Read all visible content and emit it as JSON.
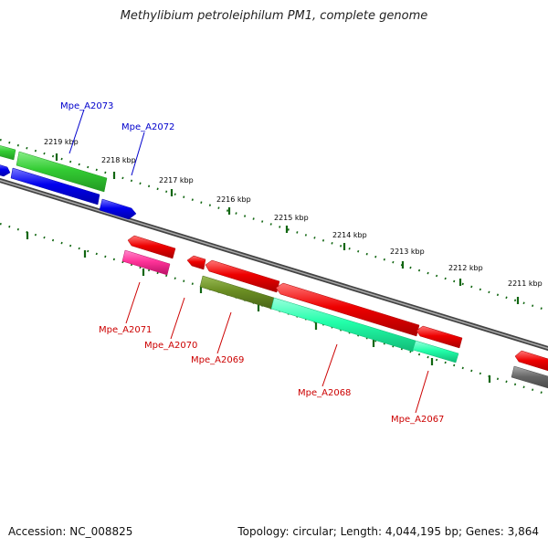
{
  "title": "Methylibium petroleiphilum PM1, complete genome",
  "ticks": [
    "2219 kbp",
    "2218 kbp",
    "2217 kbp",
    "2216 kbp",
    "2215 kbp",
    "2214 kbp",
    "2213 kbp",
    "2212 kbp",
    "2211 kbp"
  ],
  "genes": {
    "forward": [
      "Mpe_A2073",
      "Mpe_A2072"
    ],
    "reverse": [
      "Mpe_A2071",
      "Mpe_A2070",
      "Mpe_A2069",
      "Mpe_A2068",
      "Mpe_A2067"
    ]
  },
  "footer": {
    "accession": "Accession: NC_008825",
    "summary": "Topology: circular; Length: 4,044,195 bp; Genes: 3,864"
  },
  "colors": {
    "forward_label": "#0000cc",
    "reverse_label": "#cc0000",
    "gene_red": "#ee0000",
    "gene_blue": "#0000ee",
    "gene_green": "#33cc33",
    "gene_teal": "#22ffaa",
    "gene_olive": "#6b8e23",
    "gene_pink": "#ff3399",
    "gene_gray": "#666666",
    "tick": "#116611"
  }
}
